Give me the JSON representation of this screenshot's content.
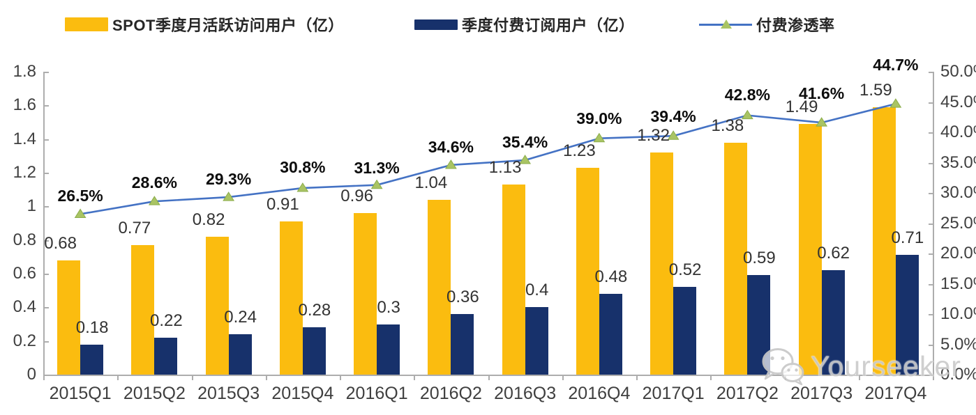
{
  "watermark": {
    "text": "Yourseeker",
    "icon": "wechat-icon"
  },
  "chart_data": {
    "type": "bar",
    "subtype": "combo-bar-line",
    "categories": [
      "2015Q1",
      "2015Q2",
      "2015Q3",
      "2015Q4",
      "2016Q1",
      "2016Q2",
      "2016Q3",
      "2016Q4",
      "2017Q1",
      "2017Q2",
      "2017Q3",
      "2017Q4"
    ],
    "series": [
      {
        "name": "SPOT季度月活跃访问用户（亿）",
        "type": "bar",
        "axis": "left",
        "color": "#FBBC0F",
        "values": [
          0.68,
          0.77,
          0.82,
          0.91,
          0.96,
          1.04,
          1.13,
          1.23,
          1.32,
          1.38,
          1.49,
          1.59
        ],
        "labels": [
          "0.68",
          "0.77",
          "0.82",
          "0.91",
          "0.96",
          "1.04",
          "1.13",
          "1.23",
          "1.32",
          "1.38",
          "1.49",
          "1.59"
        ]
      },
      {
        "name": "季度付费订阅用户（亿）",
        "type": "bar",
        "axis": "left",
        "color": "#17316B",
        "values": [
          0.18,
          0.22,
          0.24,
          0.28,
          0.3,
          0.36,
          0.4,
          0.48,
          0.52,
          0.59,
          0.62,
          0.71
        ],
        "labels": [
          "0.18",
          "0.22",
          "0.24",
          "0.28",
          "0.3",
          "0.36",
          "0.4",
          "0.48",
          "0.52",
          "0.59",
          "0.62",
          "0.71"
        ]
      },
      {
        "name": "付费渗透率",
        "type": "line",
        "axis": "right",
        "color": "#4472C4",
        "marker": "triangle",
        "marker_color": "#A9C464",
        "values": [
          26.5,
          28.6,
          29.3,
          30.8,
          31.3,
          34.6,
          35.4,
          39.0,
          39.4,
          42.8,
          41.6,
          44.7
        ],
        "labels": [
          "26.5%",
          "28.6%",
          "29.3%",
          "30.8%",
          "31.3%",
          "34.6%",
          "35.4%",
          "39.0%",
          "39.4%",
          "42.8%",
          "41.6%",
          "44.7%"
        ]
      }
    ],
    "left_axis": {
      "min": 0,
      "max": 1.8,
      "step": 0.2,
      "tick_labels": [
        "0",
        "0.2",
        "0.4",
        "0.6",
        "0.8",
        "1",
        "1.2",
        "1.4",
        "1.6",
        "1.8"
      ]
    },
    "right_axis": {
      "min": 0,
      "max": 50,
      "step": 5,
      "tick_labels": [
        "0.0%",
        "5.0%",
        "10.0%",
        "15.0%",
        "20.0%",
        "25.0%",
        "30.0%",
        "35.0%",
        "40.0%",
        "45.0%",
        "50.0%"
      ]
    },
    "grid": false,
    "legend_position": "top",
    "layout_hints": {
      "pct_label_dy": [
        26,
        27,
        26,
        30,
        25,
        26,
        26,
        29,
        28,
        30,
        42,
        56
      ],
      "bar_label_dy": 24
    }
  }
}
